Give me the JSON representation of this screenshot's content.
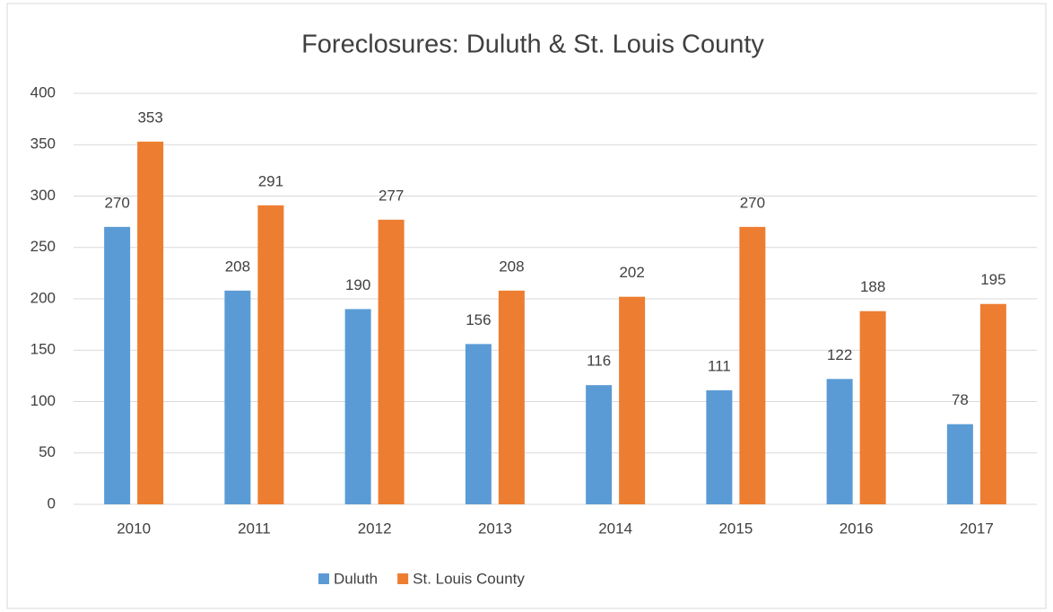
{
  "chart_data": {
    "type": "bar",
    "title": "Foreclosures: Duluth & St. Louis County",
    "categories": [
      "2010",
      "2011",
      "2012",
      "2013",
      "2014",
      "2015",
      "2016",
      "2017"
    ],
    "series": [
      {
        "name": "Duluth",
        "color": "#5b9bd5",
        "values": [
          270,
          208,
          190,
          156,
          116,
          111,
          122,
          78
        ]
      },
      {
        "name": "St. Louis County",
        "color": "#ed7d31",
        "values": [
          353,
          291,
          277,
          208,
          202,
          270,
          188,
          195
        ]
      }
    ],
    "ylim": [
      0,
      400
    ],
    "yticks": [
      0,
      50,
      100,
      150,
      200,
      250,
      300,
      350,
      400
    ],
    "grid": true,
    "legend": "bottom"
  }
}
